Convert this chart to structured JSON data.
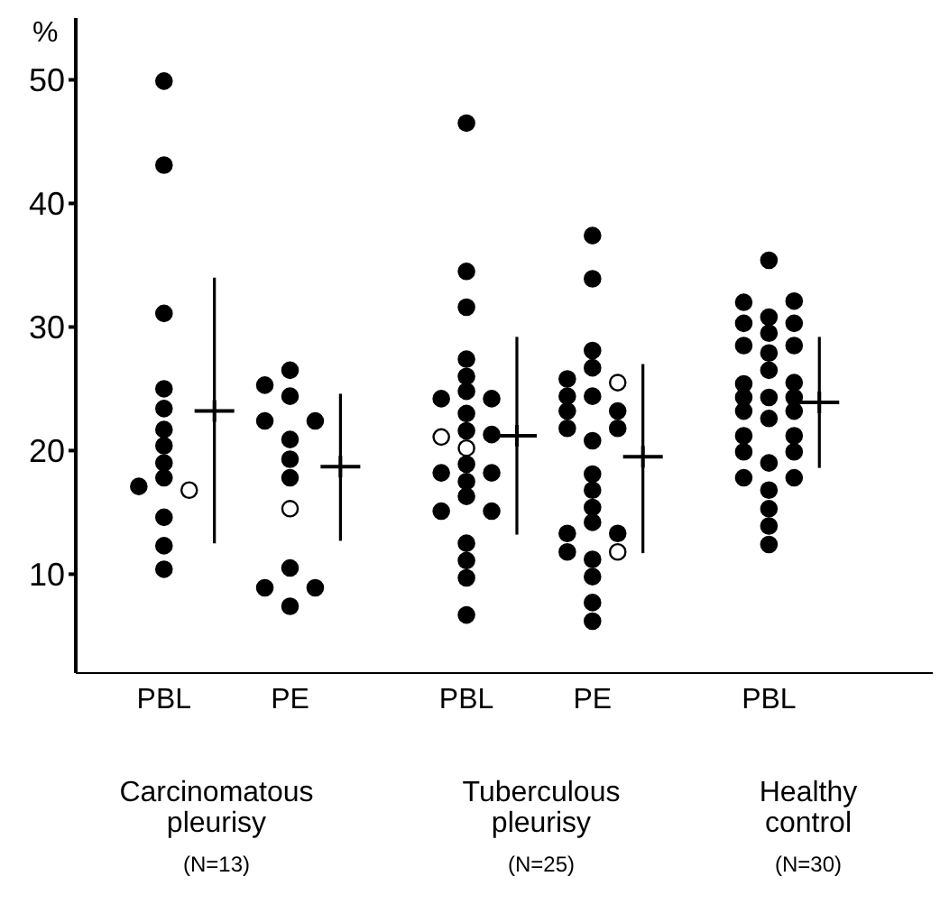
{
  "chart_data": {
    "type": "scatter",
    "ylabel": "%",
    "ylim": [
      2,
      55
    ],
    "yticks": [
      10,
      20,
      30,
      40,
      50
    ],
    "categories": [
      null,
      null,
      null,
      "PBL",
      null,
      null,
      null,
      null,
      "PE",
      null,
      null,
      null,
      null,
      null,
      null,
      "PBL",
      null,
      null,
      null,
      null,
      "PE",
      null,
      null,
      null,
      null,
      null,
      null,
      "PBL",
      null,
      null,
      null,
      null,
      null,
      null
    ],
    "grid": false,
    "legend": false,
    "marker": "circle",
    "annotations": [
      "Carcinomatous\npleurisy\n(N=13)",
      "Tuberculous\npleurisy\n(N=25)",
      "Healthy\ncontrol\n(N=30)"
    ],
    "series": [
      {
        "color": "#000000",
        "values": [
          null,
          null,
          17.1,
          49.9,
          null,
          null,
          null,
          25.3,
          26.5,
          22.4,
          null,
          null,
          null,
          null,
          24.2,
          46.5,
          24.2,
          null,
          null,
          25.8,
          37.4,
          23.2,
          null,
          null,
          null,
          null,
          32.0,
          35.4,
          32.1,
          null,
          null,
          null,
          null,
          null
        ]
      },
      {
        "color": "#000000",
        "values": [
          null,
          null,
          null,
          43.1,
          null,
          null,
          null,
          22.4,
          24.4,
          8.9,
          null,
          null,
          null,
          null,
          18.2,
          34.5,
          21.3,
          null,
          null,
          24.4,
          33.9,
          21.8,
          null,
          null,
          null,
          null,
          30.3,
          30.8,
          30.3,
          null,
          null,
          null,
          null,
          null
        ]
      },
      {
        "color": "#000000",
        "values": [
          null,
          null,
          null,
          31.1,
          null,
          null,
          null,
          8.9,
          20.9,
          null,
          null,
          null,
          null,
          null,
          15.1,
          31.6,
          18.2,
          null,
          null,
          23.2,
          28.1,
          13.3,
          null,
          null,
          null,
          null,
          28.5,
          29.5,
          28.5,
          null,
          null,
          null,
          null,
          null
        ]
      },
      {
        "color": "#000000",
        "values": [
          null,
          null,
          null,
          25.0,
          null,
          null,
          null,
          null,
          19.3,
          null,
          null,
          null,
          null,
          null,
          null,
          27.4,
          15.1,
          null,
          null,
          21.8,
          26.7,
          null,
          null,
          null,
          null,
          null,
          25.4,
          27.9,
          25.5,
          null,
          null,
          null,
          null,
          null
        ]
      },
      {
        "color": "#000000",
        "values": [
          null,
          null,
          null,
          23.4,
          null,
          null,
          null,
          null,
          17.8,
          null,
          null,
          null,
          null,
          null,
          null,
          26.0,
          null,
          null,
          null,
          13.3,
          24.4,
          null,
          null,
          null,
          null,
          null,
          24.3,
          26.5,
          24.3,
          null,
          null,
          null,
          null,
          null
        ]
      },
      {
        "color": "#000000",
        "values": [
          null,
          null,
          null,
          21.7,
          null,
          null,
          null,
          null,
          10.5,
          null,
          null,
          null,
          null,
          null,
          null,
          24.8,
          null,
          null,
          null,
          11.8,
          20.8,
          null,
          null,
          null,
          null,
          null,
          23.2,
          24.3,
          23.2,
          null,
          null,
          null,
          null,
          null
        ]
      },
      {
        "color": "#000000",
        "values": [
          null,
          null,
          null,
          20.4,
          null,
          null,
          null,
          null,
          7.4,
          null,
          null,
          null,
          null,
          null,
          null,
          23.0,
          null,
          null,
          null,
          null,
          18.1,
          null,
          null,
          null,
          null,
          null,
          21.2,
          22.6,
          21.2,
          null,
          null,
          null,
          null,
          null
        ]
      },
      {
        "color": "#000000",
        "values": [
          null,
          null,
          null,
          19.0,
          null,
          null,
          null,
          null,
          null,
          null,
          null,
          null,
          null,
          null,
          null,
          21.6,
          null,
          null,
          null,
          null,
          16.8,
          null,
          null,
          null,
          null,
          null,
          19.9,
          19.0,
          19.9,
          null,
          null,
          null,
          null,
          null
        ]
      },
      {
        "color": "#000000",
        "values": [
          null,
          null,
          null,
          17.8,
          null,
          null,
          null,
          null,
          null,
          null,
          null,
          null,
          null,
          null,
          null,
          18.9,
          null,
          null,
          null,
          null,
          15.4,
          null,
          null,
          null,
          null,
          null,
          17.8,
          16.8,
          17.8,
          null,
          null,
          null,
          null,
          null
        ]
      },
      {
        "color": "#000000",
        "values": [
          null,
          null,
          null,
          14.6,
          null,
          null,
          null,
          null,
          null,
          null,
          null,
          null,
          null,
          null,
          null,
          17.5,
          null,
          null,
          null,
          null,
          14.2,
          null,
          null,
          null,
          null,
          null,
          null,
          15.3,
          null,
          null,
          null,
          null,
          null,
          null
        ]
      },
      {
        "color": "#000000",
        "values": [
          null,
          null,
          null,
          12.3,
          null,
          null,
          null,
          null,
          null,
          null,
          null,
          null,
          null,
          null,
          null,
          16.3,
          null,
          null,
          null,
          null,
          11.2,
          null,
          null,
          null,
          null,
          null,
          null,
          13.9,
          null,
          null,
          null,
          null,
          null,
          null
        ]
      },
      {
        "color": "#000000",
        "values": [
          null,
          null,
          null,
          10.4,
          null,
          null,
          null,
          null,
          null,
          null,
          null,
          null,
          null,
          null,
          null,
          12.5,
          null,
          null,
          null,
          null,
          9.8,
          null,
          null,
          null,
          null,
          null,
          null,
          12.4,
          null,
          null,
          null,
          null,
          null,
          null
        ]
      },
      {
        "color": "#000000",
        "values": [
          null,
          null,
          null,
          null,
          null,
          null,
          null,
          null,
          null,
          null,
          null,
          null,
          null,
          null,
          null,
          11.1,
          null,
          null,
          null,
          null,
          7.7,
          null,
          null,
          null,
          null,
          null,
          null,
          null,
          null,
          null,
          null,
          null,
          null,
          null
        ]
      },
      {
        "color": "#000000",
        "values": [
          null,
          null,
          null,
          null,
          null,
          null,
          null,
          null,
          null,
          null,
          null,
          null,
          null,
          null,
          null,
          9.7,
          null,
          null,
          null,
          null,
          6.2,
          null,
          null,
          null,
          null,
          null,
          null,
          null,
          null,
          null,
          null,
          null,
          null,
          null
        ]
      },
      {
        "color": "#000000",
        "values": [
          null,
          null,
          null,
          null,
          null,
          null,
          null,
          null,
          null,
          null,
          null,
          null,
          null,
          null,
          null,
          6.7,
          null,
          null,
          null,
          null,
          null,
          null,
          null,
          null,
          null,
          null,
          null,
          null,
          null,
          null,
          null,
          null,
          null,
          null
        ]
      },
      {
        "color": "#ffffff",
        "values": [
          null,
          null,
          null,
          null,
          16.8,
          null,
          null,
          null,
          15.3,
          null,
          null,
          null,
          null,
          null,
          21.1,
          20.2,
          null,
          null,
          null,
          null,
          null,
          25.5,
          null,
          null,
          null,
          null,
          null,
          null,
          null,
          null,
          null,
          null,
          null,
          null
        ]
      },
      {
        "color": "#ffffff",
        "values": [
          null,
          null,
          null,
          null,
          null,
          null,
          null,
          null,
          null,
          null,
          null,
          null,
          null,
          null,
          null,
          null,
          null,
          null,
          null,
          null,
          null,
          11.8,
          null,
          null,
          null,
          null,
          null,
          null,
          null,
          null,
          null,
          null,
          null,
          null
        ]
      },
      {
        "type": "scatter",
        "color": "#000000",
        "marker": "cross",
        "values": [
          null,
          null,
          null,
          null,
          null,
          23.2,
          null,
          null,
          null,
          null,
          18.7,
          null,
          null,
          null,
          null,
          null,
          null,
          21.2,
          null,
          null,
          null,
          null,
          19.5,
          null,
          null,
          null,
          null,
          null,
          null,
          23.9,
          null,
          null,
          null,
          null
        ],
        "errors": [
          null,
          null,
          null,
          null,
          null,
          [
            12.5,
            34.0
          ],
          null,
          null,
          null,
          null,
          [
            12.7,
            24.6
          ],
          null,
          null,
          null,
          null,
          null,
          null,
          [
            13.2,
            29.2
          ],
          null,
          null,
          null,
          null,
          [
            11.7,
            27.0
          ],
          null,
          null,
          null,
          null,
          null,
          null,
          [
            18.6,
            29.2
          ],
          null,
          null,
          null,
          null
        ]
      }
    ]
  }
}
